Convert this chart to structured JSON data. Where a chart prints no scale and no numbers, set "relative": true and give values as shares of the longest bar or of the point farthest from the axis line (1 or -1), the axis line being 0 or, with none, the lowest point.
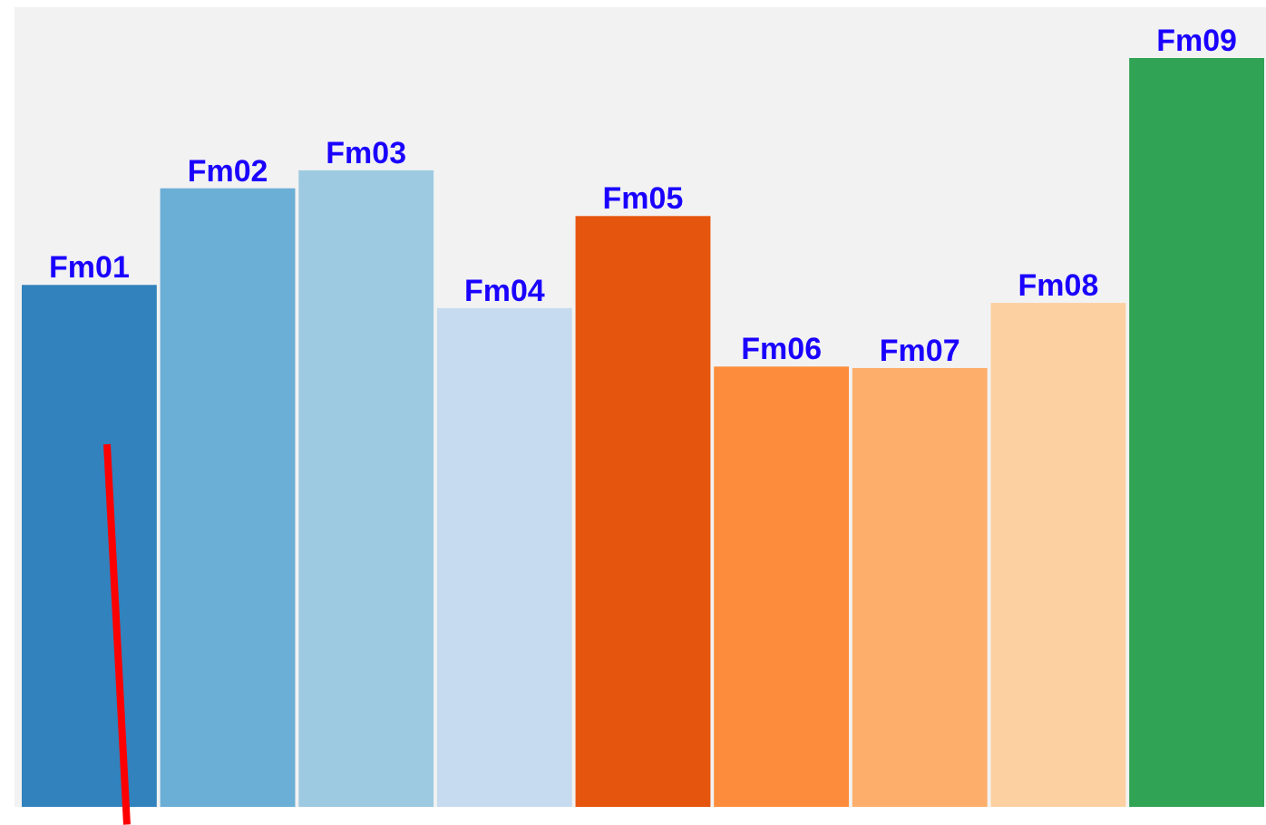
{
  "chart_data": {
    "type": "bar",
    "relative": true,
    "categories": [
      "Fm01",
      "Fm02",
      "Fm03",
      "Fm04",
      "Fm05",
      "Fm06",
      "Fm07",
      "Fm08",
      "Fm09"
    ],
    "values": [
      0.697,
      0.826,
      0.85,
      0.666,
      0.789,
      0.588,
      0.586,
      0.673,
      1
    ],
    "colors": [
      "#3182bd",
      "#6baed6",
      "#9ecae1",
      "#c6dbef",
      "#e6550d",
      "#fd8d3c",
      "#fdae6b",
      "#fdd0a2",
      "#31a354"
    ]
  }
}
